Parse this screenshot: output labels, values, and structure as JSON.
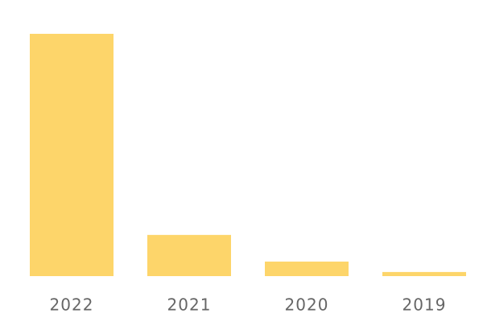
{
  "chart_data": {
    "type": "bar",
    "categories": [
      "2022",
      "2021",
      "2020",
      "2019"
    ],
    "values": [
      100,
      17,
      6,
      1.7
    ],
    "color": "#fdd56a"
  }
}
